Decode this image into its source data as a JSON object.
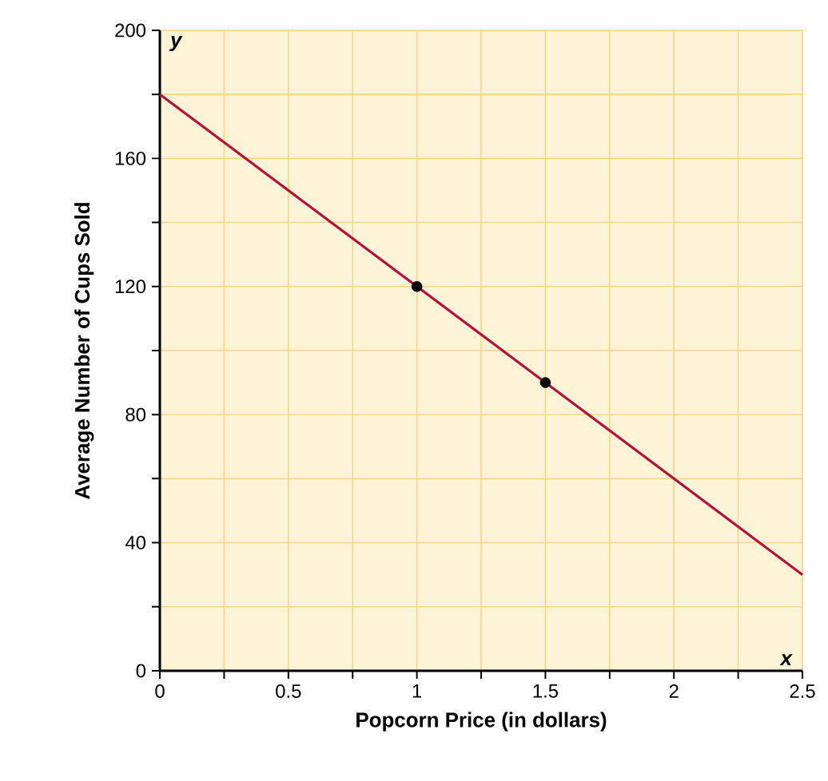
{
  "chart_data": {
    "type": "line",
    "xlabel": "Popcorn Price (in dollars)",
    "ylabel": "Average Number of Cups Sold",
    "annotations": [
      "y",
      "x"
    ],
    "series": [
      {
        "color": "#b5123a",
        "x": [
          0,
          2.5
        ],
        "values": [
          180,
          30
        ],
        "marker": "none"
      },
      {
        "type": "scatter",
        "color": "#000000",
        "x": [
          1,
          1.5
        ],
        "values": [
          120,
          90
        ],
        "marker": "circle"
      }
    ],
    "xlim": [
      0,
      2.5
    ],
    "ylim": [
      0,
      200
    ],
    "xticks": [
      0,
      {
        "value": 0.25,
        "label": null
      },
      0.5,
      {
        "value": 0.75,
        "label": null
      },
      1,
      {
        "value": 1.25,
        "label": null
      },
      1.5,
      {
        "value": 1.75,
        "label": null
      },
      2,
      {
        "value": 2.25,
        "label": null
      },
      2.5
    ],
    "yticks": [
      0,
      {
        "value": 20,
        "label": null
      },
      40,
      {
        "value": 60,
        "label": null
      },
      80,
      {
        "value": 100,
        "label": null
      },
      120,
      {
        "value": 140,
        "label": null
      },
      160,
      {
        "value": 180,
        "label": null
      },
      200
    ],
    "grid": true
  }
}
